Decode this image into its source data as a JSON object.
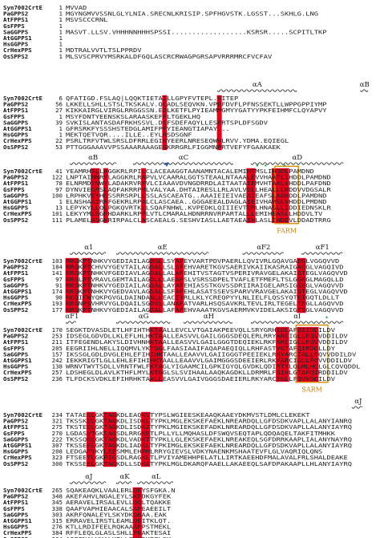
{
  "figure": {
    "colors": {
      "identical_bg": "#e3001b",
      "identical_fg": "#ffffff",
      "similar_fg": "#e3001b",
      "similar_box": "#3a55b7",
      "motif_box": "#d98a00",
      "motif_text": "#c77d00",
      "marker_triangle": "#3158a8",
      "marker_star": "#18a35b",
      "name_text": "#111111",
      "seq_text": "#222222"
    },
    "blocks": [
      {
        "sequences": [
          {
            "name": "Syn7002CrtE",
            "start": "1",
            "seq": "MVVAD"
          },
          {
            "name": "PaGPPS2",
            "start": "1",
            "seq": "MGYNGMVVSSNLGLYLNIA.SRECNLKRISIP.SPFHGVSTK.LGSST...SKHLG.LNG"
          },
          {
            "name": "AtFPPS1",
            "start": "1",
            "seq": "MSVSCCCRNL"
          },
          {
            "name": "GsFPPS",
            "start": "1",
            "seq": ""
          },
          {
            "name": "SaGGPPS",
            "start": "1",
            "seq": "MASVT.LLSV.VHHHNNHHHSPSSI..................KSRSR.....SCPITLTKP"
          },
          {
            "name": "AtGGPPS1",
            "start": "1",
            "seq": ""
          },
          {
            "name": "HsGGPPS",
            "start": "1",
            "seq": ""
          },
          {
            "name": "CrHexPPS",
            "start": "1",
            "seq": "MDTRALVVTLTSLPPRDV"
          },
          {
            "name": "OsSPPS2",
            "start": "1",
            "seq": "MLSVSCPRVYMSRKALDFGQLASCRCRWAGPGRSAPVRRRMRCFVCFAV"
          }
        ]
      },
      {
        "labels": [
          "αA",
          "αB"
        ],
        "sequences": [
          {
            "name": "Syn7002CrtE",
            "start": "6",
            "seq": "QFATIGD.FSLAQ|LQQKTIETAILLGPYFVTEPL.VITEP"
          },
          {
            "name": "PaGPPS2",
            "start": "56",
            "seq": "LKKELLSHLLSTSLTKSKALV.QLADLSEQVKN.VPEFDVFLPFNSSEKTLLWPPGPPIYMP"
          },
          {
            "name": "AtFPPS1",
            "start": "27",
            "seq": "KIKKAIRGLVIRGLRRGGSSN.EDLKETFLPYIEAMMGMYYGATYYPKFEIHMFCLQYAPVY"
          },
          {
            "name": "GsFPPS",
            "start": "1",
            "seq": "MSYFDNTYEENSKSLARAASKEFFLTGEKLHQ"
          },
          {
            "name": "SaGGPPS",
            "start": "39",
            "seq": "SVKISLANTASDAFRKHSSVL.DSFSDEFAQYLLESFRTSPLDFSGDV"
          },
          {
            "name": "AtGGPPS1",
            "start": "1",
            "seq": "GFRSRKFYSSSHSTEDGLAMIFPFYIEANGTIAPAY..."
          },
          {
            "name": "HsGGPPS",
            "start": "1",
            "seq": "MEKTQETVQR....ILLE..EYLRSDSGNF"
          },
          {
            "name": "CrHexPPS",
            "start": "22",
            "seq": "PSRLTRFVTWLSRSLDFRRLEGIKYEERLNRESEQWVLRVV.YDMA.EQIEGL"
          },
          {
            "name": "OsSPPS2",
            "start": "53",
            "seq": "PTTGGGAAAVVPSSAAARAAAGEGKRRGRLFIGGMNPRTVEFYFGAAKAEK"
          }
        ]
      },
      {
        "labels": [
          "αB",
          "αC",
          "αD"
        ],
        "motif": "FARM",
        "sequences": [
          {
            "name": "Syn7002CrtE",
            "start": "41",
            "seq": "YEAMRHSLLAGGKRLRPILCLACEAAGGTAANAMNTACALEMIHTMSLIHDDLPAMDND"
          },
          {
            "name": "PaGPPS2",
            "start": "122",
            "seq": "LNPTAIMNRYLAGGKRLRAPVLVCAARALGGTSTEAALNTAAALEVVHAATLIHDDLPAMDND"
          },
          {
            "name": "AtFPPS1",
            "start": "78",
            "seq": "ELNRMDYNWYLADAKRVRPVLCIAAAVDVNGDRRDLAITAATAIEMVHTAALVHDDLPAFDND"
          },
          {
            "name": "GsFPPS",
            "start": "97",
            "seq": "DYNVIEGRSLAQFAKRRPRLVALYAA.DHTAIRESLLRLAVLVELLHEALLLHDDVVDGSALR"
          },
          {
            "name": "SaGGPPS",
            "start": "100",
            "seq": "LRPHKVEYHGSSRRSRPLLSSLASCAEATG..AAAIEIEIVAEAIEAFSLAGHDDLPAMDND"
          },
          {
            "name": "AtGGPPS1",
            "start": "1",
            "seq": "ELNSHAAIRRFGEKRLRPALCLASCAEA..GGGAEEALDAGLAIEIVHAMSLVHDDLPMDND"
          },
          {
            "name": "HsGGPPS",
            "start": "13",
            "seq": "LEPYKYLLQLPGKQVRTKLLSQAFNHWL.KVPEDKLQIIIEVTEMLHNASLLIDDIEDNSKLR"
          },
          {
            "name": "CrHexPPS",
            "start": "101",
            "seq": "LEKYYMLSGFHDARKLRPPLVTLCMARALHDNRRNVRPARTALLLEMIHEASLLHDDVLTV"
          },
          {
            "name": "OsSPPS2",
            "start": "111",
            "seq": "PLAMELAGGKRIRPALCLASCAEALG.SESHVIASLLAETAEAIHLASLIHDDVLDDADTRRG"
          }
        ]
      },
      {
        "labels": [
          "α1",
          "αE",
          "αF2",
          "αF1"
        ],
        "sequences": [
          {
            "name": "Syn7002CrtE",
            "start": "103",
            "seq": "RRGKPTNHKVYGEDIAILAGDGLLSYAFEYVARTPDVPAERLLQVIVRLGQAVGAEGLVGGQVVD"
          },
          {
            "name": "PaGPPS2",
            "start": "184",
            "seq": "RRGKPTCHVVYGEVTAILAGDALLSLSFEHVARETKGVSAERIVKAIIKASRAIGAEGLVAGQIVD"
          },
          {
            "name": "AtFPPS1",
            "start": "141",
            "seq": "RRGKPTNHKVFGEDIAVLAGDALLALAFEHITVSTAGTVSPERIVRAVGELAKAIGTEGLVAGQVVD"
          },
          {
            "name": "GsFPPS",
            "start": "97",
            "seq": "RRGLPTVRAVLGEMTAILAGDLLLAEAFSLVSRSSDPELTVAFLETFMEFLTSLGGEGLMAGQLLD"
          },
          {
            "name": "SaGGPPS",
            "start": "91",
            "seq": "RRGKPTNHKVYGEDIAILAGDALLAYAFEHIASSTKGVSSDRIIRAIGELARSIGSEGLVAGQVVD"
          },
          {
            "name": "AtGGPPS1",
            "start": "174",
            "seq": "RRGKPTNHKVYGEDVAVLAGDALLSFAFEHLASATSSEVSPARVVRAVGELAKAIGTEGLVAGQVVD"
          },
          {
            "name": "HsGGPPS",
            "start": "98",
            "seq": "RGQICWYQKPGVGLDAINDANLLEACIYRLLKLYCREQPYYLNLIELFLQSSYQTEIGQTLDLLT"
          },
          {
            "name": "CrHexPPS",
            "start": "193",
            "seq": "RRGNPSVHRVYGLDQAILSGDYLLANAFATVARLHSQSAVKRLTEVLIRLTEGELTEGLLAGQVVD"
          },
          {
            "name": "OsSPPS2",
            "start": "177",
            "seq": "RRGKPTNHKVYGEDIAILAGDALLAFAFEHVAAATKGVSAERMVKVIDELAKSIGTEGLVAGQVVD"
          }
        ]
      },
      {
        "labels": [
          "αF1",
          "αG",
          "αH",
          "αI"
        ],
        "motif": "SARM",
        "sequences": [
          {
            "name": "Syn7002CrtE",
            "start": "170",
            "seq": "SEGKTDVASDLETLHFIHTHKTAALLEVCLVTGAIAKPEEVQLLSRYGRHIGLAFQIIDDILDV"
          },
          {
            "name": "PaGPPS2",
            "start": "253",
            "seq": "IDSEGLGDVDLLKLEFLHLHKTAALLEASVVLGAILGGGSDEQLERLRRYARCIGLLFQVVDDILDV"
          },
          {
            "name": "AtFPPS1",
            "start": "211",
            "seq": "ITFEGENDLAKYSLDIVHNHKTAALLEASVVLGAILGGGTDEQIEKLRKFARCIGLLFQVVDDILDV"
          },
          {
            "name": "GsFPPS",
            "start": "205",
            "seq": "EEGRIIHLNELLIQQMVLYKTGGLFAASIAAIFAQAPAEQIQLLRHFASTVGTAFQIRDDLLDY"
          },
          {
            "name": "SaGGPPS",
            "start": "157",
            "seq": "IKSSGLGDLDVGLEHLEFIHIHKTAALLEAAVVLGAIIGGGTPEEIEKLRKYARCIGLLFQVVDDILDV"
          },
          {
            "name": "AtGGPPS1",
            "start": "242",
            "seq": "IEKKRIGTLGLLEHLEFIHIHKTAALLEAAVVLGAIMGGGSDEEIERLRKYARCIGLLFQVVDDILDV"
          },
          {
            "name": "HsGGPPS",
            "start": "138",
            "seq": "WRNVTWYTSDLLVRNTFWLFKTAGLYIGAAMCILGPKIGYQLGVDKLQDIRTYLQLMLHGLGLCQVQDDL"
          },
          {
            "name": "CrHexPPS",
            "start": "257",
            "seq": "LDSHEGLDLAVLKTHFLMYLKTGGLSLSVIHAALAAQKAGDKLLDRMRLFGIHLGTAFQIRDDILDV"
          },
          {
            "name": "OsSPPS2",
            "start": "236",
            "seq": "TLFDCKSVDKLEFIHRHKTAALLEASVVLGAIVGGGSDAEIERLRKYARCIGLLFQVVDDILDV"
          }
        ]
      },
      {
        "labels": [
          "αJ"
        ],
        "sequences": [
          {
            "name": "Syn7002CrtE",
            "start": "234",
            "seq": "TATAEELGKTAGKDLEAQKVTYPSLWGIEESKEAAQKAAEYDKMVSTLDMLCLEKEKT"
          },
          {
            "name": "PaGPPS2",
            "start": "321",
            "seq": "TKSSKELGKTAGKDLISDKLTYPKLMGLEKSKEFAEKLNREARDQLLGFDSDKVAPLLALANYIANRQ"
          },
          {
            "name": "AtFPPS1",
            "start": "275",
            "seq": "TKSTEELGKTAGKDLISDKATYPKLMGIEKSKEFADKLNREARDQLLGFDSDKVAPLLALANYIAYRQ"
          },
          {
            "name": "GsFPPS",
            "start": "270",
            "seq": "LGDASVTGKSAGSDLRRGKRTLPLLYLLMQHASLDFSWQVSEQTAPLQDQAQELTAKFITMHKK"
          },
          {
            "name": "SaGGPPS",
            "start": "222",
            "seq": "TKSSQELGKTAGKDLVADKTTYPKLLGLEKSKEFAEKLNREAKEQLSGFDRRKAAPLIALANYNAYRQ"
          },
          {
            "name": "AtGGPPS1",
            "start": "307",
            "seq": "TKSSEELGKTAGKDLIADKLTYPKIMGLEKSKEFAEKLNREARDQLLGFDSDKVAPLLALANYIAYRQ"
          },
          {
            "name": "HsGGPPS",
            "start": "208",
            "seq": "LEDGAFYKYLEESMMLEHPMLRRYGIEVSLVDKYNAENKMSHAATEVFLGLVAQRIQLQNS"
          },
          {
            "name": "CrHexPPS",
            "start": "323",
            "seq": "FTSEETLGKPIGSDLRAGKLTLPVIYAMEHHPELATLLIRTKAEEHDFMALAVALFRLSHALDEAKE"
          },
          {
            "name": "OsSPPS2",
            "start": "300",
            "seq": "TKSSEELGKTAGKDLLSDKATYPKLMGLDKARQFAAELLAKAEEQLSAFDPAKAAPLLHLANYIAYRQ"
          }
        ]
      },
      {
        "labels": [
          "αJ",
          "αK",
          "αL"
        ],
        "sequences": [
          {
            "name": "Syn7002CrtE",
            "start": "265",
            "seq": "SQAKEAQKLVAALERLQEYSFGKA.N"
          },
          {
            "name": "PaGPPS2",
            "start": "348",
            "seq": "AKEFAHVLNGALEYLSKFDKGYFEK"
          },
          {
            "name": "AtFPPS1",
            "start": "345",
            "seq": "AERAVELIRSALEVLLQQLTQAKKE"
          },
          {
            "name": "GsFPPS",
            "start": "338",
            "seq": "QAAFVAPHIEAACALSAPEAEEILT"
          },
          {
            "name": "SaGGPPS",
            "start": "303",
            "seq": "AKRFQNALEYLSKYDKGKAA.EAK"
          },
          {
            "name": "AtGGPPS1",
            "start": "315",
            "seq": "ERRAVELIRSTLEAMLQEITKLQT."
          },
          {
            "name": "HsGGPPS",
            "start": "276",
            "seq": "KTLLRDIFEELRQKAAAFPSTMEKL"
          },
          {
            "name": "CrHexPPS",
            "start": "384",
            "seq": "RFFLEQLGLASLSHLLPEAKTESAI"
          },
          {
            "name": "OsSPPS2",
            "start": "364",
            "seq": "AQPFNALVKALKELLEYGDKEFLSK"
          }
        ]
      }
    ]
  }
}
